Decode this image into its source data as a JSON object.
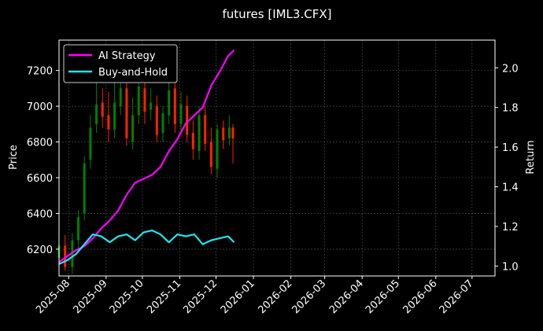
{
  "chart_data": {
    "type": "line",
    "title": "futures [IML3.CFX]",
    "ylabel": "Price",
    "y2label": "Return",
    "grid": true,
    "legend_position": "top-left",
    "xlim": [
      "2025-07-24",
      "2026-07-20"
    ],
    "ylim": [
      6050,
      7370
    ],
    "y2lim": [
      0.95,
      2.14
    ],
    "x_ticks": [
      "2025-08",
      "2025-09",
      "2025-10",
      "2025-11",
      "2025-12",
      "2026-01",
      "2026-02",
      "2026-03",
      "2026-04",
      "2026-05",
      "2026-06",
      "2026-07"
    ],
    "y_ticks": [
      6200,
      6400,
      6600,
      6800,
      7000,
      7200
    ],
    "y2_ticks": [
      "1.0",
      "1.2",
      "1.4",
      "1.6",
      "1.8",
      "2.0"
    ],
    "colors": {
      "background": "#000000",
      "up_candle": "#008000",
      "down_candle": "#ff2200",
      "ai_strategy": "#ff00ff",
      "buy_and_hold": "#22e5ee",
      "grid": "#555555"
    },
    "series": [
      {
        "name": "AI Strategy",
        "axis": "right",
        "x": [
          "2025-07-24",
          "2025-07-31",
          "2025-08-07",
          "2025-08-14",
          "2025-08-21",
          "2025-08-28",
          "2025-09-04",
          "2025-09-11",
          "2025-09-18",
          "2025-09-25",
          "2025-10-02",
          "2025-10-09",
          "2025-10-16",
          "2025-10-23",
          "2025-10-30",
          "2025-11-06",
          "2025-11-13",
          "2025-11-20",
          "2025-11-27",
          "2025-12-04",
          "2025-12-11",
          "2025-12-16"
        ],
        "values": [
          1.02,
          1.05,
          1.08,
          1.1,
          1.14,
          1.19,
          1.23,
          1.28,
          1.36,
          1.42,
          1.44,
          1.46,
          1.5,
          1.58,
          1.64,
          1.72,
          1.76,
          1.8,
          1.91,
          1.98,
          2.06,
          2.09
        ]
      },
      {
        "name": "Buy-and-Hold",
        "axis": "right",
        "x": [
          "2025-07-24",
          "2025-07-31",
          "2025-08-07",
          "2025-08-14",
          "2025-08-21",
          "2025-08-28",
          "2025-09-04",
          "2025-09-11",
          "2025-09-18",
          "2025-09-25",
          "2025-10-02",
          "2025-10-09",
          "2025-10-16",
          "2025-10-23",
          "2025-10-30",
          "2025-11-06",
          "2025-11-13",
          "2025-11-20",
          "2025-11-27",
          "2025-12-04",
          "2025-12-11",
          "2025-12-16"
        ],
        "values": [
          1.01,
          1.03,
          1.06,
          1.11,
          1.16,
          1.15,
          1.12,
          1.15,
          1.16,
          1.13,
          1.17,
          1.18,
          1.16,
          1.12,
          1.16,
          1.15,
          1.16,
          1.11,
          1.13,
          1.14,
          1.15,
          1.12
        ]
      }
    ],
    "candles": {
      "axis": "left",
      "x": [
        "2025-07-24",
        "2025-07-29",
        "2025-08-04",
        "2025-08-09",
        "2025-08-14",
        "2025-08-19",
        "2025-08-24",
        "2025-08-29",
        "2025-09-03",
        "2025-09-08",
        "2025-09-13",
        "2025-09-18",
        "2025-09-23",
        "2025-09-28",
        "2025-10-03",
        "2025-10-08",
        "2025-10-13",
        "2025-10-18",
        "2025-10-23",
        "2025-10-28",
        "2025-11-02",
        "2025-11-07",
        "2025-11-12",
        "2025-11-17",
        "2025-11-22",
        "2025-11-27",
        "2025-12-02",
        "2025-12-07",
        "2025-12-12",
        "2025-12-15"
      ],
      "open": [
        6150,
        6220,
        6100,
        6250,
        6400,
        6700,
        6900,
        7020,
        6950,
        6870,
        7000,
        7100,
        6800,
        6950,
        7100,
        6980,
        7000,
        6850,
        6950,
        7100,
        6900,
        7000,
        6850,
        6750,
        6950,
        6800,
        6650,
        6880,
        6820,
        6880
      ],
      "close": [
        6220,
        6100,
        6250,
        6380,
        6680,
        6880,
        7010,
        6940,
        6870,
        7020,
        7100,
        6820,
        6950,
        7110,
        6970,
        7020,
        6840,
        6960,
        7090,
        6900,
        7010,
        6840,
        6760,
        6950,
        6790,
        6660,
        6870,
        6810,
        6880,
        6820
      ],
      "high": [
        6260,
        6280,
        6290,
        6420,
        6720,
        6950,
        7150,
        7100,
        7080,
        7200,
        7220,
        7160,
        7050,
        7250,
        7180,
        7100,
        7060,
        7000,
        7150,
        7200,
        7080,
        7060,
        6920,
        7000,
        7000,
        6880,
        6900,
        6920,
        6950,
        6900
      ],
      "low": [
        6100,
        6080,
        6060,
        6200,
        6360,
        6650,
        6850,
        6880,
        6800,
        6820,
        6950,
        6780,
        6760,
        6900,
        6900,
        6920,
        6800,
        6800,
        6900,
        6850,
        6850,
        6800,
        6700,
        6700,
        6750,
        6620,
        6600,
        6760,
        6780,
        6680
      ]
    }
  }
}
